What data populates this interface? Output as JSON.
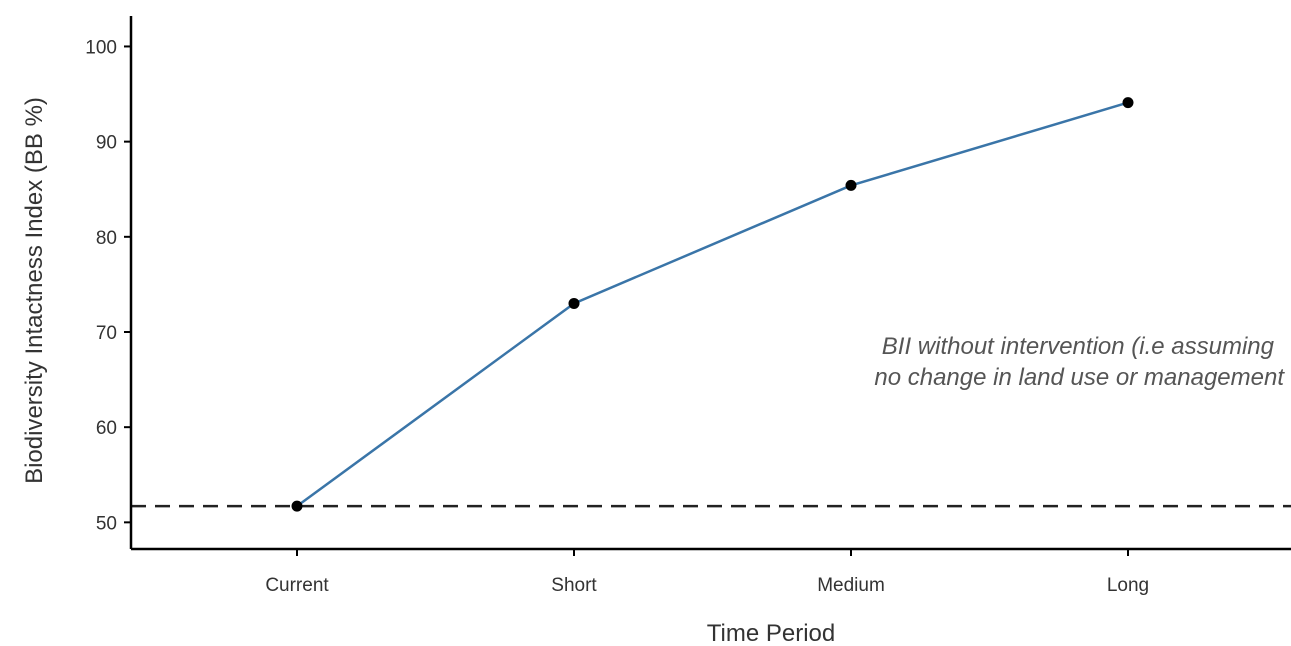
{
  "chart_data": {
    "type": "line",
    "title": "",
    "xlabel": "Time Period",
    "ylabel": "Biodiversity Intactness Index (BB %)",
    "categories": [
      "Current",
      "Short",
      "Medium",
      "Long"
    ],
    "series": [
      {
        "values": [
          51.7,
          73.0,
          85.4,
          94.1
        ]
      }
    ],
    "yticks": [
      50,
      60,
      70,
      80,
      90,
      100
    ],
    "ylim": [
      47.2,
      103.2
    ],
    "reference_line": {
      "y": 51.7,
      "style": "dashed"
    },
    "annotation": {
      "lines": [
        "BII without intervention (i.e assuming",
        "no change in land use or management"
      ]
    },
    "grid": false,
    "legend": "none",
    "colors": {
      "line": "#3a75a8",
      "marker": "#000000",
      "reference": "#222222",
      "axis": "#000000"
    }
  }
}
